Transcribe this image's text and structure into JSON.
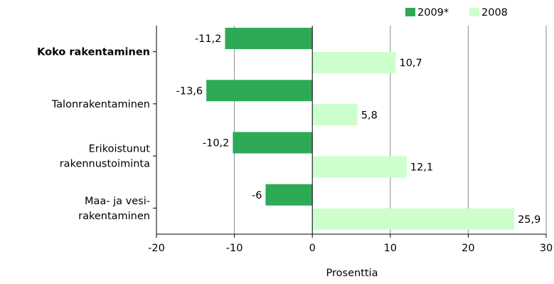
{
  "chart_data": {
    "type": "bar",
    "orientation": "horizontal",
    "categories": [
      [
        "Koko rakentaminen"
      ],
      [
        "Talonrakentaminen"
      ],
      [
        "Erikoistunut",
        "rakennustoiminta"
      ],
      [
        "Maa- ja vesi-",
        "rakentaminen"
      ]
    ],
    "bold_categories": [
      true,
      false,
      false,
      false
    ],
    "series": [
      {
        "name": "2009*",
        "values": [
          -11.2,
          -13.6,
          -10.2,
          -6
        ],
        "labels": [
          "-11,2",
          "-13,6",
          "-10,2",
          "-6"
        ],
        "color": "#2eaa57"
      },
      {
        "name": "2008",
        "values": [
          10.7,
          5.8,
          12.1,
          25.9
        ],
        "labels": [
          "10,7",
          "5,8",
          "12,1",
          "25,9"
        ],
        "color": "#ccffcc"
      }
    ],
    "xlabel": "Prosenttia",
    "xlim": [
      -20,
      30
    ],
    "xticks": [
      -20,
      -10,
      0,
      10,
      20,
      30
    ],
    "xtick_labels": [
      "-20",
      "-10",
      "0",
      "10",
      "20",
      "30"
    ],
    "grid": true,
    "legend": "top-right"
  }
}
